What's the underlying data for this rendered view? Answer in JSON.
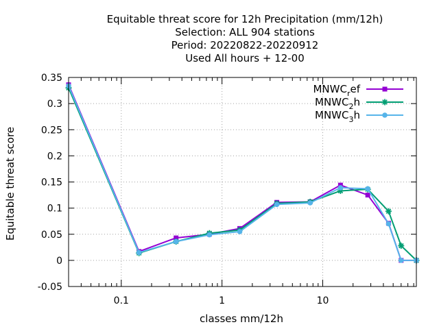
{
  "chart_data": {
    "type": "line",
    "title_lines": [
      "Equitable threat score  for 12h Precipitation (mm/12h)",
      "Selection: ALL    904 stations",
      "Period: 20220822-20220912",
      "Used  All hours  + 12-00"
    ],
    "xlabel": "classes mm/12h",
    "ylabel": "Equitable threat score",
    "x_scale": "log",
    "xlim": [
      0.03,
      85
    ],
    "ylim": [
      -0.05,
      0.35
    ],
    "grid": true,
    "legend_position": "top-right",
    "x_tick_labels": [
      "0.1",
      "1",
      "10"
    ],
    "y_tick_labels": [
      "-0.05",
      "0",
      "0.05",
      "0.1",
      "0.15",
      "0.2",
      "0.25",
      "0.3",
      "0.35"
    ],
    "series": [
      {
        "name": "MNWC_ref",
        "legend": {
          "base": "MNWC",
          "sub": "r",
          "rest": "ef"
        },
        "color": "#9400D3",
        "marker": "square",
        "x": [
          0.03,
          0.15,
          0.35,
          0.75,
          1.5,
          3.5,
          7.5,
          15,
          28,
          45,
          60,
          85
        ],
        "y": [
          0.336,
          0.017,
          0.043,
          0.05,
          0.061,
          0.111,
          0.112,
          0.144,
          0.125,
          0.071,
          0.0,
          0.0
        ]
      },
      {
        "name": "MNWC_2h",
        "legend": {
          "base": "MNWC",
          "sub": "2",
          "rest": "h"
        },
        "color": "#009E73",
        "marker": "star",
        "x": [
          0.03,
          0.15,
          0.35,
          0.75,
          1.5,
          3.5,
          7.5,
          15,
          28,
          45,
          60,
          85
        ],
        "y": [
          0.33,
          0.014,
          0.036,
          0.052,
          0.058,
          0.109,
          0.112,
          0.133,
          0.136,
          0.094,
          0.028,
          0.0
        ]
      },
      {
        "name": "MNWC_3h",
        "legend": {
          "base": "MNWC",
          "sub": "3",
          "rest": "h"
        },
        "color": "#56B4E9",
        "marker": "circle",
        "x": [
          0.03,
          0.15,
          0.35,
          0.75,
          1.5,
          3.5,
          7.5,
          15,
          28,
          45,
          60,
          85
        ],
        "y": [
          0.334,
          0.015,
          0.036,
          0.049,
          0.055,
          0.107,
          0.11,
          0.139,
          0.137,
          0.07,
          0.0,
          0.0
        ]
      }
    ]
  }
}
